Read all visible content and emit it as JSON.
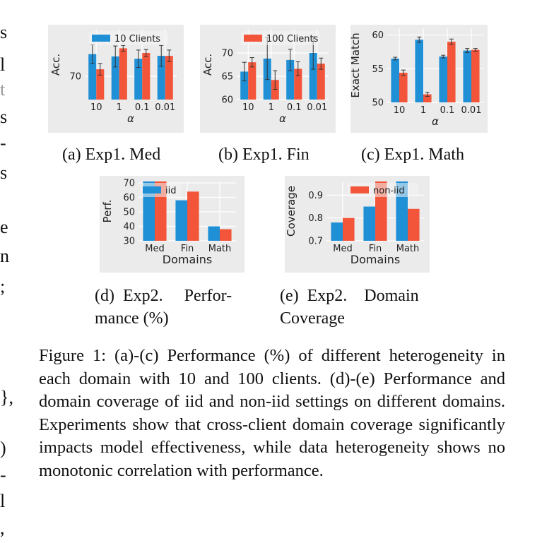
{
  "margin_chars": [
    "s",
    "l",
    "t",
    "s",
    "-",
    "s",
    "e",
    "n",
    ";",
    "},",
    ")",
    "-",
    "l",
    ","
  ],
  "panels": [
    {
      "id": "a",
      "caption": "(a) Exp1. Med"
    },
    {
      "id": "b",
      "caption": "(b) Exp1. Fin"
    },
    {
      "id": "c",
      "caption": "(c) Exp1. Math"
    },
    {
      "id": "d",
      "caption_line1": "(d)  Exp2.     Perfor-",
      "caption_line2": "mance (%)"
    },
    {
      "id": "e",
      "caption_line1": "(e)  Exp2.    Domain",
      "caption_line2": "Coverage"
    }
  ],
  "figure_caption": "Figure 1: (a)-(c) Performance (%) of different heterogeneity in each domain with 10 and 100 clients. (d)-(e) Performance and domain coverage of iid and non-iid settings on different domains. Experiments show that cross-client domain coverage significantly impacts model effectiveness, while data heterogeneity shows no monotonic correlation with performance.",
  "colors": {
    "blue": "#1f8fd6",
    "red": "#f2553a",
    "panel_bg": "#ebebeb",
    "grid": "#ffffff"
  },
  "chart_data": [
    {
      "id": "a",
      "type": "bar",
      "xlabel": "α",
      "ylabel": "Acc.",
      "categories": [
        "10",
        "1",
        "0.1",
        "0.01"
      ],
      "yticks": [
        70
      ],
      "ylim": [
        66,
        78
      ],
      "legend": "top-center",
      "series": [
        {
          "name": "10 Clients",
          "color": "blue",
          "values": [
            73.8,
            73.4,
            73.0,
            73.5
          ],
          "errors": [
            1.6,
            1.8,
            1.5,
            1.8
          ]
        },
        {
          "name": "",
          "color": "red",
          "values": [
            71.2,
            74.8,
            74.0,
            73.5
          ],
          "errors": [
            1.0,
            0.5,
            0.6,
            1.0
          ]
        }
      ]
    },
    {
      "id": "b",
      "type": "bar",
      "xlabel": "α",
      "ylabel": "Acc.",
      "categories": [
        "10",
        "1",
        "0.1",
        "0.01"
      ],
      "yticks": [
        60,
        65,
        70
      ],
      "ylim": [
        60,
        75
      ],
      "legend": "top-center",
      "series": [
        {
          "name": "",
          "color": "blue",
          "values": [
            66.0,
            68.8,
            68.5,
            70.0
          ],
          "errors": [
            2.0,
            4.5,
            2.3,
            3.5
          ]
        },
        {
          "name": "100 Clients",
          "color": "red",
          "values": [
            68.0,
            64.2,
            66.6,
            67.7
          ],
          "errors": [
            1.0,
            2.0,
            1.5,
            1.2
          ]
        }
      ]
    },
    {
      "id": "c",
      "type": "bar",
      "xlabel": "α",
      "ylabel": "Exact Match",
      "categories": [
        "10",
        "1",
        "0.1",
        "0.01"
      ],
      "yticks": [
        50,
        55,
        60
      ],
      "ylim": [
        50,
        61
      ],
      "legend": "none",
      "series": [
        {
          "name": "",
          "color": "blue",
          "values": [
            56.5,
            59.3,
            56.8,
            57.7
          ],
          "errors": [
            0.2,
            0.4,
            0.2,
            0.3
          ]
        },
        {
          "name": "",
          "color": "red",
          "values": [
            54.4,
            51.2,
            59.0,
            57.8
          ],
          "errors": [
            0.4,
            0.3,
            0.4,
            0.2
          ]
        }
      ]
    },
    {
      "id": "d",
      "type": "bar",
      "xlabel": "Domains",
      "ylabel": "Perf.",
      "categories": [
        "Med",
        "Fin",
        "Math"
      ],
      "yticks": [
        30,
        40,
        50,
        60,
        70
      ],
      "ylim": [
        30,
        71
      ],
      "legend": "top-left",
      "series": [
        {
          "name": "iid",
          "color": "blue",
          "values": [
            71,
            58,
            40
          ]
        },
        {
          "name": "",
          "color": "red",
          "values": [
            71,
            64,
            38
          ]
        }
      ]
    },
    {
      "id": "e",
      "type": "bar",
      "xlabel": "Domains",
      "ylabel": "Coverage",
      "categories": [
        "Med",
        "Fin",
        "Math"
      ],
      "yticks": [
        0.7,
        0.8,
        0.9
      ],
      "ylim": [
        0.7,
        0.96
      ],
      "legend": "top-right",
      "series": [
        {
          "name": "",
          "color": "blue",
          "values": [
            0.78,
            0.85,
            0.96
          ]
        },
        {
          "name": "non-iid",
          "color": "red",
          "values": [
            0.8,
            0.96,
            0.84
          ]
        }
      ]
    }
  ]
}
